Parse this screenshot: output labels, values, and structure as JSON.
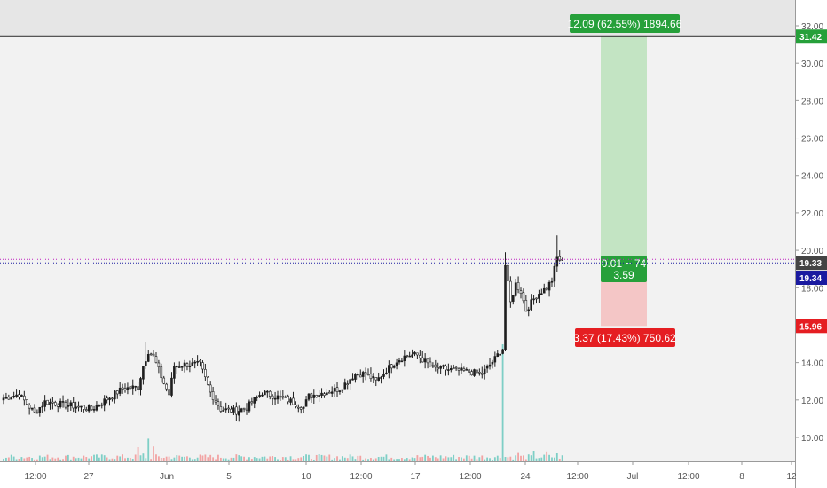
{
  "colors": {
    "background": "#f2f2f2",
    "axis_bg": "#ffffff",
    "candle_up": "#1e1e1e",
    "candle_down": "#ffffff",
    "volume_up": "#7ecfc6",
    "volume_down": "#f2a3a3",
    "target_zone": "#c3e4c3",
    "stop_zone": "#f4c6c6",
    "target_label": "#26a03a",
    "stop_label": "#e51e22",
    "entry_line": "#1a1aa0",
    "dotted_line": "#c020c0",
    "high_line": "#222222"
  },
  "chart_data": {
    "type": "candlestick",
    "title": "",
    "xlabel": "",
    "ylabel": "",
    "ylim": [
      8.8,
      33.1
    ],
    "grid": false,
    "x_ticks": [
      "12:00",
      "27",
      "Jun",
      "5",
      "10",
      "12:00",
      "17",
      "12:00",
      "24",
      "12:00",
      "Jul",
      "12:00",
      "8",
      "12"
    ],
    "y_ticks": [
      "32.00",
      "30.00",
      "28.00",
      "26.00",
      "24.00",
      "22.00",
      "20.00",
      "18.00",
      "16.00",
      "14.00",
      "12.00",
      "10.00"
    ],
    "close_anchors": [
      [
        0,
        12.1
      ],
      [
        6,
        12.3
      ],
      [
        12,
        11.3
      ],
      [
        16,
        11.9
      ],
      [
        26,
        11.7
      ],
      [
        34,
        11.5
      ],
      [
        46,
        12.6
      ],
      [
        52,
        12.7
      ],
      [
        54,
        13.8
      ],
      [
        56,
        14.6
      ],
      [
        58,
        14.3
      ],
      [
        62,
        12.9
      ],
      [
        64,
        12.3
      ],
      [
        66,
        13.8
      ],
      [
        70,
        13.9
      ],
      [
        76,
        13.9
      ],
      [
        80,
        12.4
      ],
      [
        84,
        11.5
      ],
      [
        90,
        11.4
      ],
      [
        94,
        11.6
      ],
      [
        100,
        12.4
      ],
      [
        110,
        12.0
      ],
      [
        116,
        11.6
      ],
      [
        118,
        12.2
      ],
      [
        124,
        12.4
      ],
      [
        130,
        12.6
      ],
      [
        136,
        13.4
      ],
      [
        140,
        13.4
      ],
      [
        144,
        13.0
      ],
      [
        148,
        13.6
      ],
      [
        152,
        14.1
      ],
      [
        156,
        14.4
      ],
      [
        160,
        14.4
      ],
      [
        166,
        13.7
      ],
      [
        174,
        13.6
      ],
      [
        180,
        13.5
      ],
      [
        185,
        13.4
      ],
      [
        190,
        14.2
      ],
      [
        192,
        14.6
      ],
      [
        193.4,
        14.8
      ],
      [
        194,
        19.2
      ],
      [
        196,
        17.2
      ],
      [
        198,
        18.2
      ],
      [
        200,
        17.8
      ],
      [
        202,
        16.8
      ],
      [
        204,
        17.2
      ],
      [
        206,
        17.6
      ],
      [
        208,
        17.8
      ],
      [
        210,
        18.0
      ],
      [
        212,
        18.4
      ],
      [
        214,
        19.6
      ],
      [
        216,
        19.4
      ]
    ],
    "candle_count": 217,
    "volume_spikes": [
      [
        193,
        10.5
      ],
      [
        205,
        1.5
      ],
      [
        199,
        1.3
      ],
      [
        214,
        1.2
      ],
      [
        54,
        1.1
      ],
      [
        56,
        3.2
      ],
      [
        52,
        2.0
      ],
      [
        58,
        2.1
      ],
      [
        210,
        1.4
      ]
    ],
    "position": {
      "entry": 19.33,
      "target": 31.42,
      "stop": 15.96,
      "target_label": "12.09 (62.55%) 1894.66",
      "stop_label": "3.37 (17.43%) 750.62",
      "ratio_line1": "0.01 ~ 74",
      "ratio_line2": "3.59"
    },
    "price_labels": [
      {
        "text": "31.42",
        "value": 31.42,
        "color": "#26a03a"
      },
      {
        "text": "19.33",
        "value": 19.33,
        "color": "#444444"
      },
      {
        "text": "19.34",
        "value": 19.34,
        "color": "#1a1aa0"
      },
      {
        "text": "15.96",
        "value": 15.96,
        "color": "#e51e22"
      }
    ],
    "dotted_line_value": 19.52,
    "entry_line_value": 19.33,
    "high_line_value": 31.42
  }
}
